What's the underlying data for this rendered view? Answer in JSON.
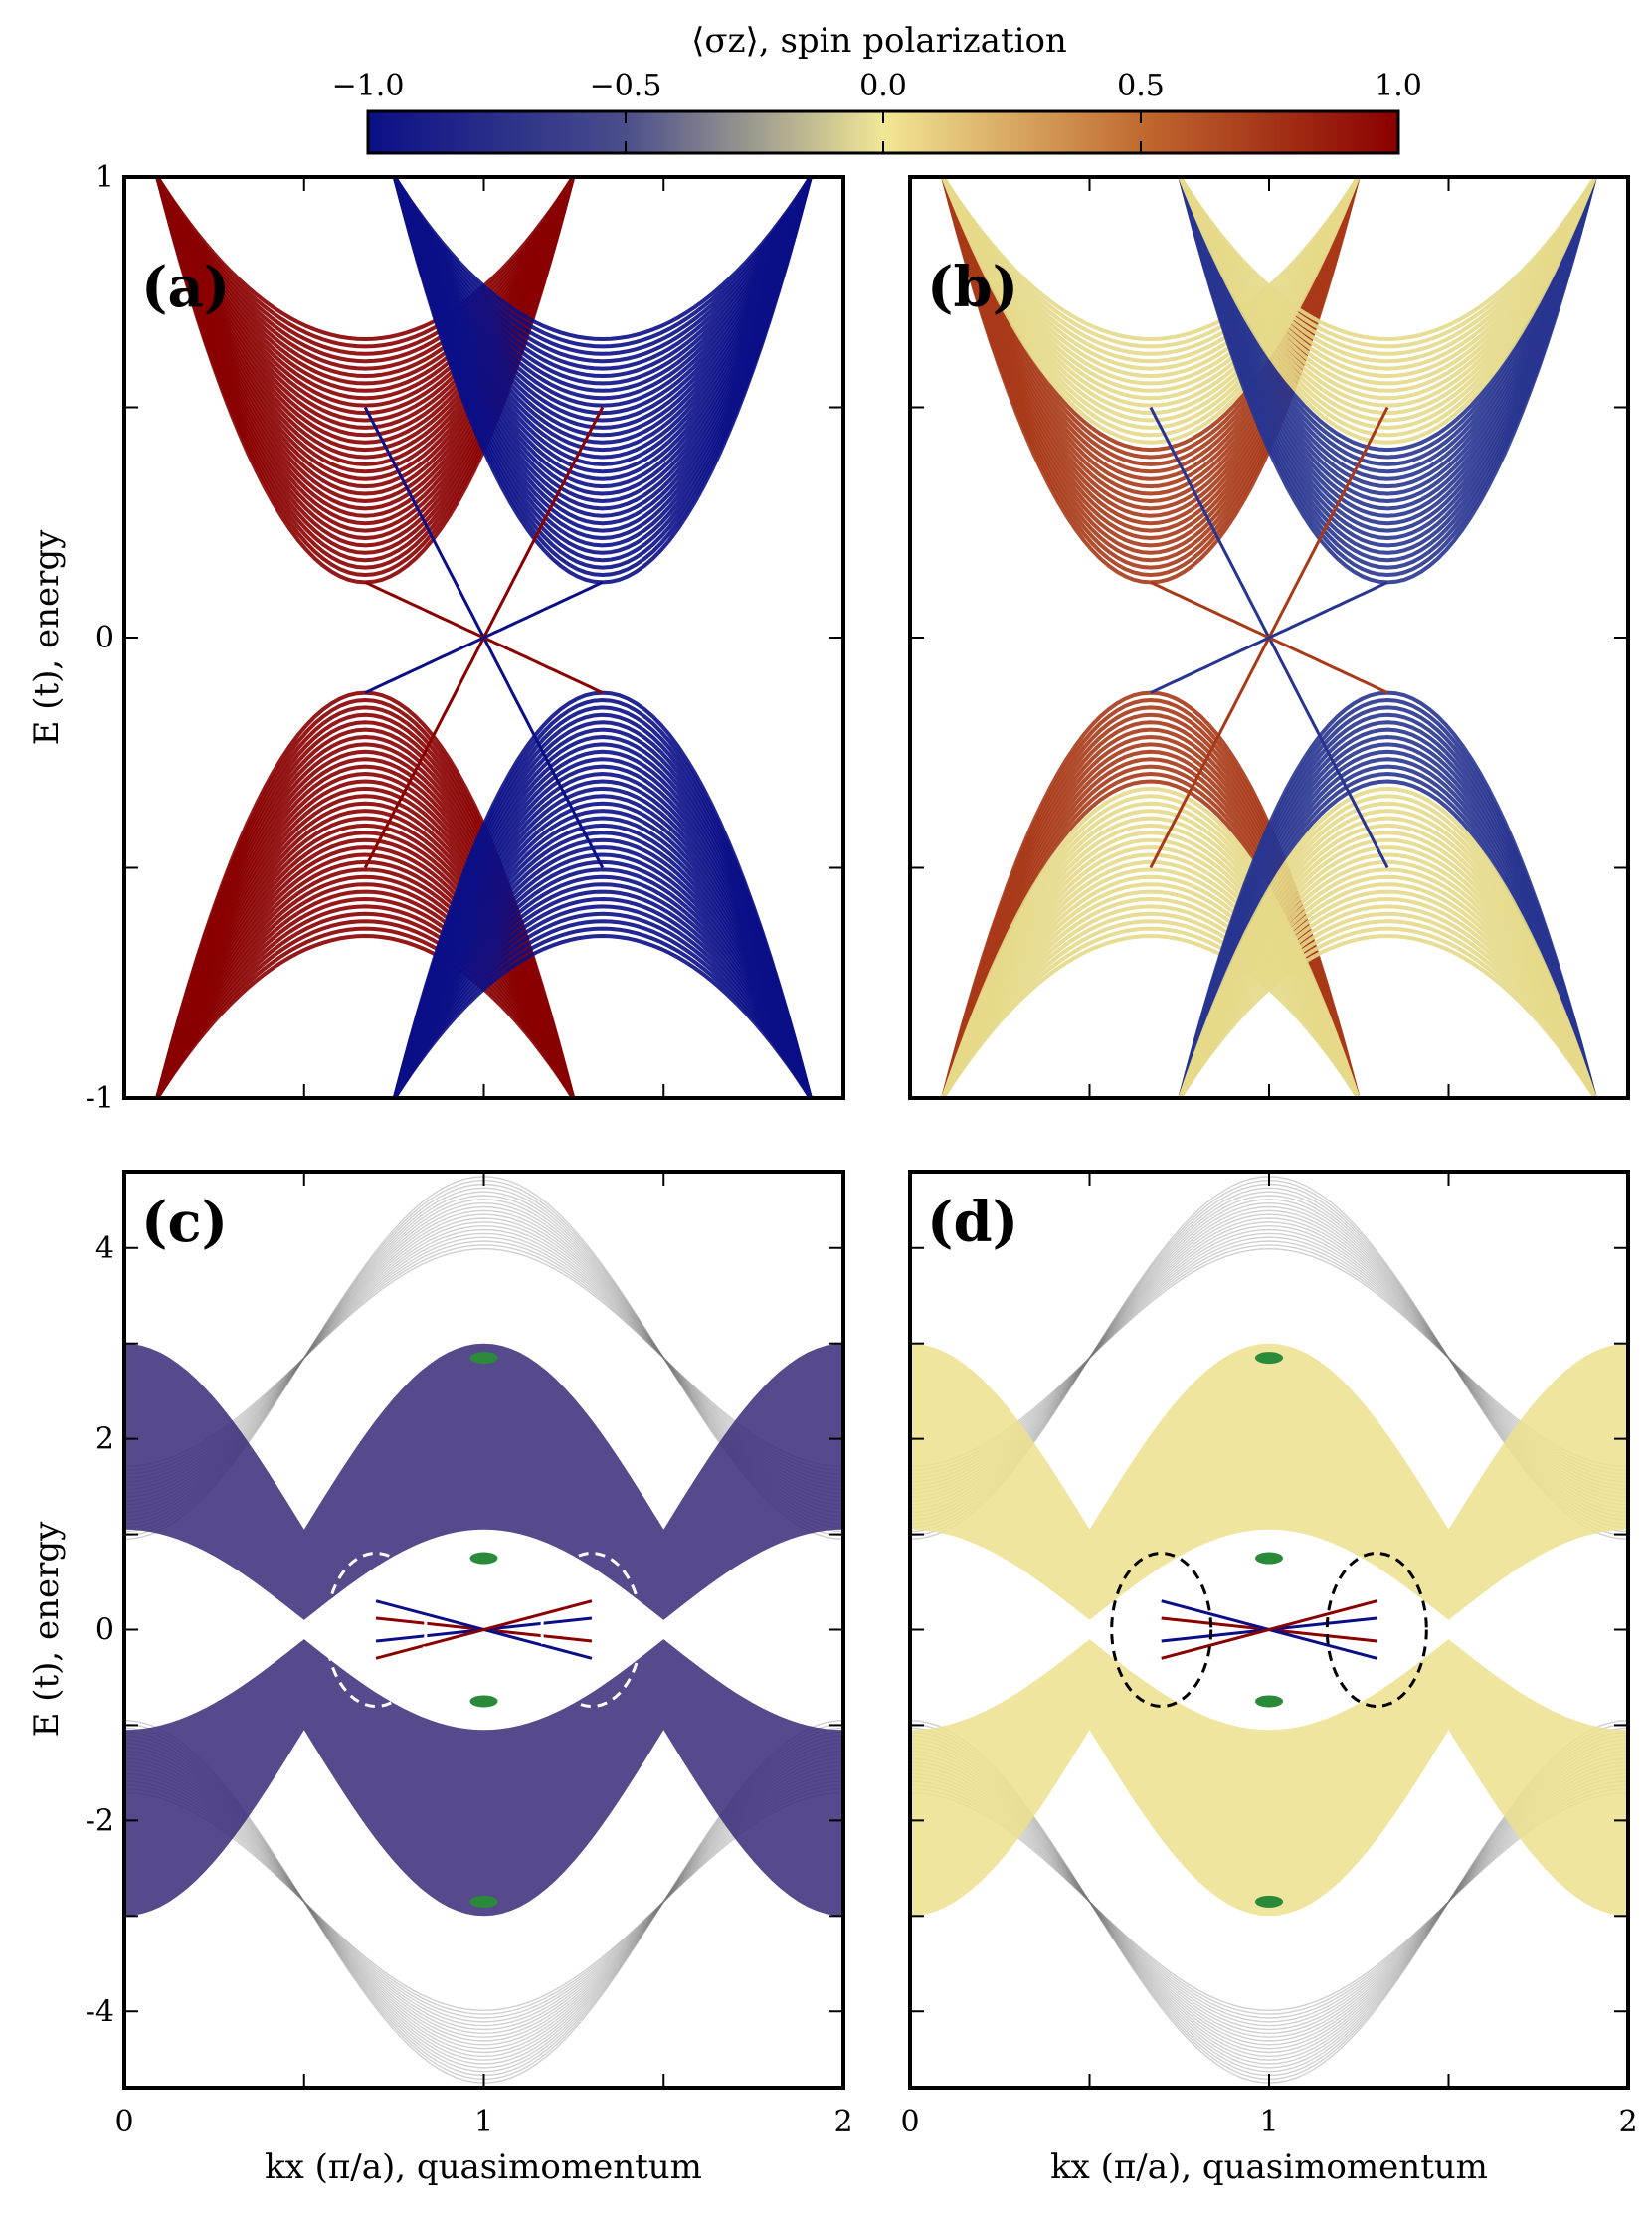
{
  "colorbar": {
    "label": "⟨σz⟩, spin polarization",
    "ticks": [
      -1.0,
      -0.5,
      0.0,
      0.5,
      1.0
    ],
    "tick_labels": [
      "−1.0",
      "−0.5",
      "0.0",
      "0.5",
      "1.0"
    ],
    "colors": [
      "#0b0f87",
      "#f1e795",
      "#8a0000"
    ]
  },
  "chart_data": [
    {
      "panel": "(a)",
      "type": "line",
      "xlim": [
        0,
        2
      ],
      "ylim": [
        -1,
        1
      ],
      "ylabel": "E (t), energy",
      "yticks": [
        -1,
        0,
        1
      ],
      "ytick_labels": [
        "-1",
        "0",
        "1"
      ],
      "bulk_gap": 0.12,
      "edge_crossings": [
        {
          "kx": 1.0,
          "E": 0.0
        }
      ],
      "band_colors": {
        "left": "#8a0000",
        "right": "#0b0f87"
      }
    },
    {
      "panel": "(b)",
      "type": "line",
      "xlim": [
        0,
        2
      ],
      "ylim": [
        -1,
        1
      ],
      "bulk_gap": 0.12,
      "edge_crossings": [
        {
          "kx": 1.0,
          "E": 0.0
        }
      ],
      "band_colors": {
        "left": "#a02810",
        "right": "#0b0f87",
        "mixed": "#f1e795"
      }
    },
    {
      "panel": "(c)",
      "type": "line",
      "xlim": [
        0,
        2
      ],
      "ylim": [
        -4.8,
        4.8
      ],
      "ylabel": "E (t), energy",
      "xlabel": "kx (π/a), quasimomentum",
      "xticks": [
        0,
        1,
        2
      ],
      "xtick_labels": [
        "0",
        "1",
        "2"
      ],
      "yticks": [
        -4,
        -2,
        0,
        2,
        4
      ],
      "ytick_labels": [
        "-4",
        "-2",
        "0",
        "2",
        "4"
      ],
      "dirac_points": [
        {
          "kx": 1.0,
          "E": 2.85
        },
        {
          "kx": 1.0,
          "E": -2.85
        },
        {
          "kx": 1.0,
          "E": 0.75
        },
        {
          "kx": 1.0,
          "E": -0.75
        }
      ],
      "ellipses": [
        {
          "kx": 0.7,
          "E": 0.0
        },
        {
          "kx": 1.3,
          "E": 0.0
        }
      ]
    },
    {
      "panel": "(d)",
      "type": "line",
      "xlim": [
        0,
        2
      ],
      "ylim": [
        -4.8,
        4.8
      ],
      "xlabel": "kx (π/a), quasimomentum",
      "xticks": [
        0,
        1,
        2
      ],
      "xtick_labels": [
        "0",
        "1",
        "2"
      ],
      "dirac_points": [
        {
          "kx": 1.0,
          "E": 2.85
        },
        {
          "kx": 1.0,
          "E": -2.85
        },
        {
          "kx": 1.0,
          "E": 0.75
        },
        {
          "kx": 1.0,
          "E": -0.75
        }
      ],
      "ellipses": [
        {
          "kx": 0.7,
          "E": 0.0
        },
        {
          "kx": 1.3,
          "E": 0.0
        }
      ]
    }
  ]
}
